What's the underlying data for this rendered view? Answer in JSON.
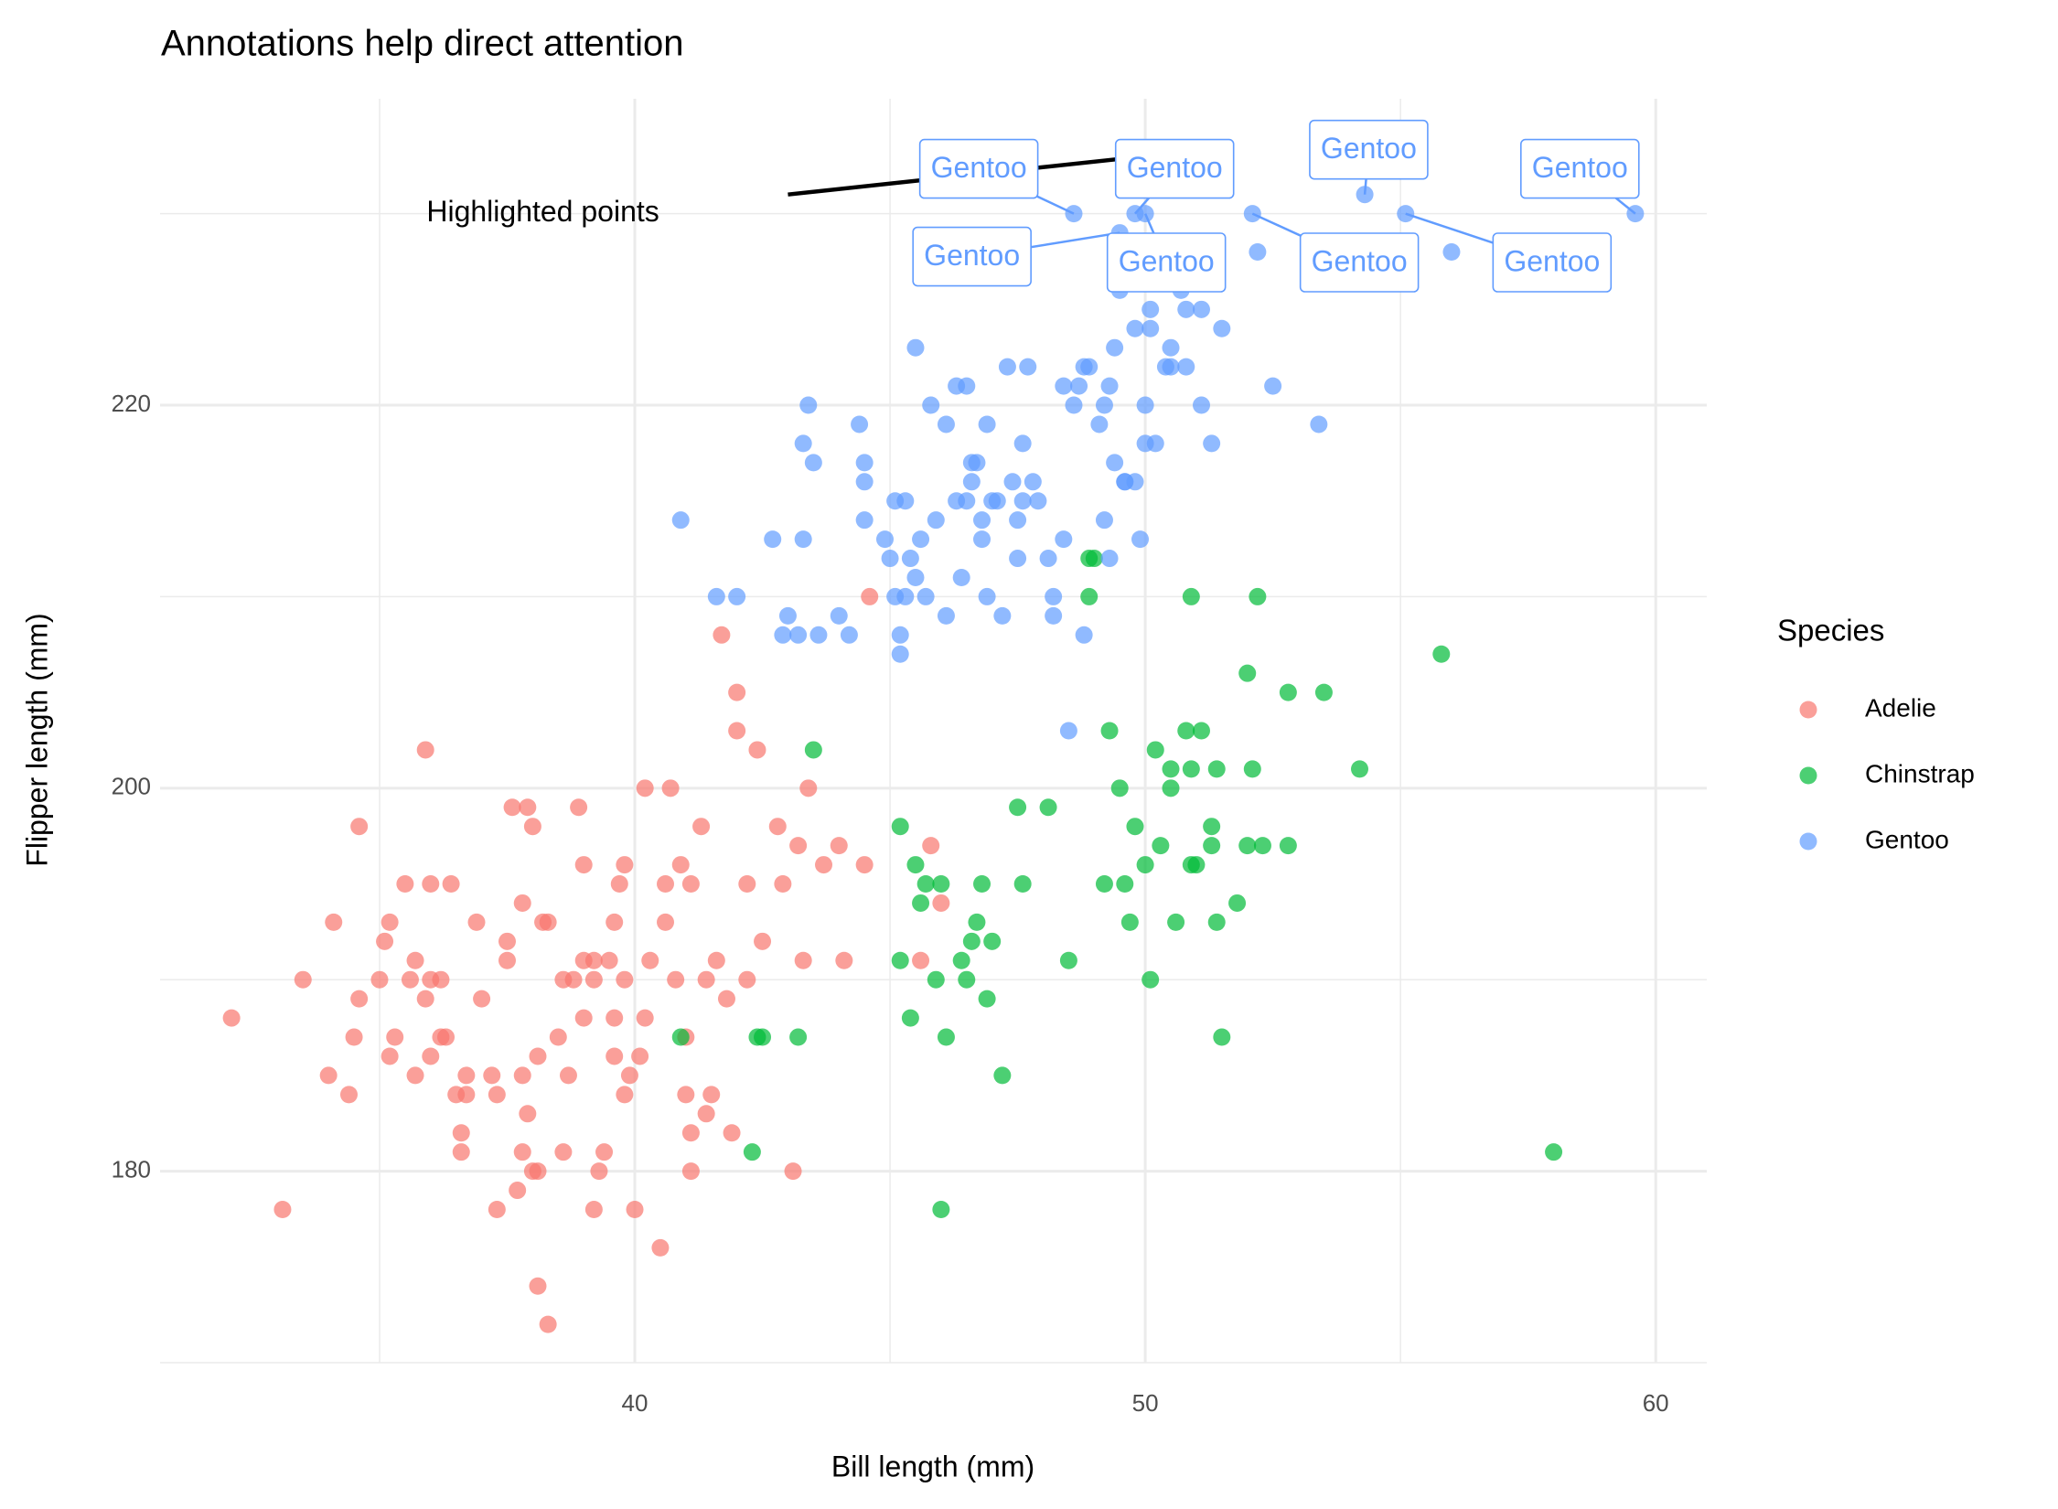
{
  "chart_data": {
    "type": "scatter",
    "title": "Annotations help direct attention",
    "x_label": "Bill length (mm)",
    "y_label": "Flipper length (mm)",
    "xlim": [
      30.7,
      61.0
    ],
    "ylim": [
      170,
      236
    ],
    "xticks": [
      40,
      50,
      60
    ],
    "yticks": [
      180,
      200,
      220
    ],
    "xminor": [
      35,
      45,
      55
    ],
    "yminor": [
      170,
      190,
      210,
      230
    ],
    "grid": true,
    "point_alpha": 0.7,
    "legend_title": "Species",
    "legend_position": "right",
    "series": [
      {
        "name": "Adelie",
        "color": "#F8766D",
        "x": [
          32.1,
          33.1,
          33.5,
          34.0,
          34.1,
          34.4,
          34.5,
          34.6,
          34.6,
          35.0,
          35.1,
          35.2,
          35.2,
          35.3,
          35.5,
          35.6,
          35.7,
          35.7,
          35.9,
          35.9,
          36.0,
          36.0,
          36.0,
          36.2,
          36.2,
          36.3,
          36.4,
          36.5,
          36.6,
          36.6,
          36.7,
          36.7,
          36.9,
          37.0,
          37.2,
          37.3,
          37.3,
          37.5,
          37.5,
          37.6,
          37.7,
          37.8,
          37.8,
          37.8,
          37.9,
          37.9,
          38.0,
          38.0,
          38.1,
          38.1,
          38.1,
          38.2,
          38.3,
          38.3,
          38.5,
          38.6,
          38.6,
          38.7,
          38.8,
          38.9,
          39.0,
          39.0,
          39.2,
          39.2,
          39.3,
          39.4,
          39.5,
          39.6,
          39.7,
          39.8,
          39.8,
          39.9,
          40.0,
          40.1,
          40.2,
          40.3,
          40.5,
          40.6,
          40.7,
          40.8,
          40.9,
          41.0,
          41.1,
          41.1,
          41.3,
          41.4,
          41.4,
          41.5,
          41.6,
          41.7,
          41.8,
          41.9,
          42.0,
          42.0,
          42.2,
          42.2,
          42.4,
          42.5,
          42.8,
          42.9,
          43.1,
          43.2,
          43.3,
          43.4,
          43.7,
          44.0,
          44.1,
          44.5,
          44.6,
          45.8,
          45.6,
          46.0,
          39.6,
          39.0,
          40.2,
          40.6,
          41.0,
          41.1,
          39.8,
          39.2,
          39.6
        ],
        "values": [
          188,
          178,
          190,
          185,
          193,
          184,
          187,
          198,
          189,
          190,
          192,
          193,
          186,
          187,
          195,
          190,
          191,
          185,
          202,
          189,
          190,
          186,
          195,
          187,
          190,
          187,
          195,
          184,
          182,
          181,
          184,
          185,
          193,
          189,
          185,
          178,
          184,
          191,
          192,
          199,
          179,
          181,
          194,
          185,
          183,
          199,
          198,
          180,
          174,
          186,
          180,
          193,
          172,
          193,
          187,
          190,
          181,
          185,
          190,
          199,
          188,
          191,
          190,
          191,
          180,
          181,
          191,
          186,
          195,
          196,
          190,
          185,
          178,
          186,
          188,
          191,
          176,
          193,
          200,
          190,
          196,
          187,
          180,
          195,
          198,
          190,
          183,
          184,
          191,
          208,
          189,
          182,
          205,
          203,
          190,
          195,
          202,
          192,
          198,
          195,
          180,
          197,
          191,
          200,
          196,
          197,
          191,
          196,
          210,
          197,
          191,
          194,
          193,
          196,
          200,
          195,
          184,
          182,
          184,
          178,
          188
        ]
      },
      {
        "name": "Chinstrap",
        "color": "#00BA38",
        "x": [
          40.9,
          42.4,
          42.5,
          43.2,
          42.3,
          43.5,
          45.2,
          45.2,
          45.4,
          45.5,
          45.6,
          45.7,
          45.9,
          46.0,
          46.1,
          46.0,
          46.4,
          46.5,
          46.6,
          46.7,
          46.8,
          46.9,
          47.0,
          47.2,
          47.5,
          47.6,
          48.1,
          48.5,
          48.9,
          49.0,
          48.9,
          49.2,
          49.3,
          49.5,
          49.7,
          49.6,
          49.8,
          50.0,
          50.1,
          50.2,
          50.3,
          50.5,
          50.5,
          50.6,
          50.8,
          50.9,
          50.9,
          50.9,
          51.0,
          51.1,
          51.3,
          51.3,
          51.4,
          51.4,
          51.5,
          51.8,
          52.0,
          52.0,
          52.1,
          52.2,
          52.3,
          52.8,
          52.8,
          53.5,
          54.2,
          55.8,
          58.0
        ],
        "values": [
          187,
          187,
          187,
          187,
          181,
          202,
          198,
          191,
          188,
          196,
          194,
          195,
          190,
          195,
          187,
          178,
          191,
          190,
          192,
          193,
          195,
          189,
          192,
          185,
          199,
          195,
          199,
          191,
          210,
          212,
          212,
          195,
          203,
          200,
          193,
          195,
          198,
          196,
          190,
          202,
          197,
          200,
          201,
          193,
          203,
          210,
          201,
          196,
          196,
          203,
          197,
          198,
          201,
          193,
          187,
          194,
          206,
          197,
          201,
          210,
          197,
          205,
          197,
          205,
          201,
          207,
          181
        ]
      },
      {
        "name": "Gentoo",
        "color": "#619CFF",
        "x": [
          40.9,
          41.6,
          42.0,
          42.7,
          42.9,
          43.0,
          43.2,
          43.3,
          43.4,
          43.5,
          43.3,
          43.6,
          44.0,
          44.2,
          44.4,
          44.5,
          44.5,
          44.5,
          44.9,
          45.0,
          45.1,
          45.1,
          45.2,
          45.3,
          45.3,
          45.2,
          45.4,
          45.5,
          45.5,
          45.6,
          45.7,
          45.8,
          45.9,
          46.1,
          46.1,
          46.3,
          46.4,
          46.3,
          46.5,
          46.5,
          46.6,
          46.6,
          46.7,
          46.8,
          46.9,
          46.8,
          46.9,
          47.0,
          47.1,
          47.3,
          47.2,
          47.4,
          47.5,
          47.5,
          47.6,
          47.7,
          47.6,
          47.8,
          47.9,
          48.1,
          48.2,
          48.2,
          48.4,
          48.4,
          48.5,
          48.6,
          48.7,
          48.8,
          48.8,
          48.9,
          49.1,
          49.2,
          49.3,
          49.4,
          49.6,
          49.6,
          49.8,
          49.9,
          50.0,
          49.8,
          50.0,
          50.1,
          50.2,
          50.1,
          50.4,
          50.5,
          50.5,
          50.7,
          50.8,
          50.8,
          51.1,
          51.3,
          51.5,
          51.1,
          52.5,
          53.4,
          49.2,
          49.4,
          50.4,
          49.5,
          52.2,
          56.0,
          49.3
        ],
        "values": [
          214,
          210,
          210,
          213,
          208,
          209,
          208,
          213,
          220,
          217,
          218,
          208,
          209,
          208,
          219,
          217,
          216,
          214,
          213,
          212,
          210,
          215,
          207,
          215,
          210,
          208,
          212,
          211,
          223,
          213,
          210,
          220,
          214,
          219,
          209,
          215,
          211,
          221,
          215,
          221,
          217,
          216,
          217,
          213,
          210,
          214,
          219,
          215,
          215,
          222,
          209,
          216,
          214,
          212,
          218,
          222,
          215,
          216,
          215,
          212,
          209,
          210,
          221,
          213,
          203,
          220,
          221,
          208,
          222,
          222,
          219,
          220,
          212,
          217,
          216,
          216,
          224,
          213,
          220,
          216,
          218,
          225,
          218,
          224,
          222,
          222,
          223,
          226,
          222,
          225,
          225,
          218,
          224,
          220,
          221,
          219,
          214,
          223,
          228,
          226,
          228,
          228,
          221
        ]
      }
    ],
    "annotations": [
      {
        "type": "text",
        "text": "Highlighted points",
        "x": 38.2,
        "y": 230
      },
      {
        "type": "segment",
        "x": [
          43.0,
          50.0
        ],
        "y": [
          231,
          233
        ]
      }
    ],
    "labels": [
      {
        "text": "Gentoo",
        "x": 48.6,
        "y": 230
      },
      {
        "text": "Gentoo",
        "x": 49.8,
        "y": 230
      },
      {
        "text": "Gentoo",
        "x": 54.3,
        "y": 231
      },
      {
        "text": "Gentoo",
        "x": 59.6,
        "y": 230
      },
      {
        "text": "Gentoo",
        "x": 49.5,
        "y": 229
      },
      {
        "text": "Gentoo",
        "x": 50.0,
        "y": 230
      },
      {
        "text": "Gentoo",
        "x": 52.1,
        "y": 230
      },
      {
        "text": "Gentoo",
        "x": 55.1,
        "y": 230
      }
    ]
  }
}
